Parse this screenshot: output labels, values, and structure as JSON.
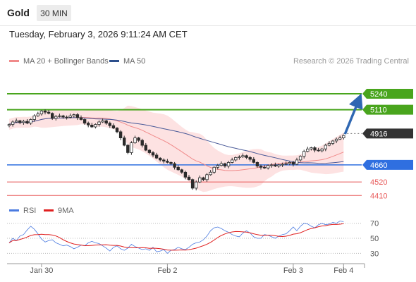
{
  "header": {
    "asset": "Gold",
    "interval": "30 MIN",
    "timestamp": "Tuesday, February 3, 2026 9:11:24 AM CET"
  },
  "legend": [
    {
      "label": "MA 20 + Bollinger Bands",
      "color": "#f08a8a"
    },
    {
      "label": "MA 50",
      "color": "#2c4f8c"
    }
  ],
  "credit": "Research © 2026 Trading Central",
  "colors": {
    "up_candle": "#ffffff",
    "down_candle": "#2b2b2b",
    "bollinger_fill": "#fde2e2",
    "ma20": "#f08a8a",
    "ma50": "#4a5a98",
    "resistance": "#49a51d",
    "support": "#2f6fe0",
    "target": "#e85a5a",
    "arrow": "#2f67b2",
    "rsi": "#4a7ae0",
    "rsi_ma": "#e01f1f"
  },
  "chart_data": [
    {
      "type": "candlestick",
      "title": "Gold",
      "interval": "30 MIN",
      "ylim": [
        4360,
        5430
      ],
      "x_labels": [
        {
          "label": "Jan 30",
          "index": 9
        },
        {
          "label": "Feb 2",
          "index": 44
        },
        {
          "label": "Feb 3",
          "index": 79
        },
        {
          "label": "Feb 4",
          "index": 93
        }
      ],
      "closes": [
        4990,
        5010,
        5020,
        5005,
        5015,
        5000,
        5030,
        5060,
        5075,
        5100,
        5090,
        5080,
        5040,
        5055,
        5060,
        5050,
        5048,
        5060,
        5070,
        5045,
        5030,
        5000,
        4985,
        4970,
        4990,
        5010,
        5020,
        5000,
        4980,
        4960,
        4930,
        4880,
        4820,
        4760,
        4840,
        4880,
        4860,
        4820,
        4780,
        4760,
        4740,
        4715,
        4700,
        4690,
        4680,
        4670,
        4640,
        4620,
        4600,
        4560,
        4540,
        4470,
        4520,
        4555,
        4540,
        4580,
        4600,
        4640,
        4655,
        4670,
        4650,
        4680,
        4700,
        4720,
        4725,
        4735,
        4720,
        4705,
        4680,
        4650,
        4640,
        4635,
        4655,
        4660,
        4650,
        4660,
        4665,
        4670,
        4680,
        4665,
        4700,
        4730,
        4770,
        4790,
        4800,
        4780,
        4775,
        4790,
        4820,
        4835,
        4855,
        4870,
        4880,
        4900
      ],
      "series": [
        {
          "name": "MA 20"
        },
        {
          "name": "MA 50"
        }
      ],
      "levels": [
        {
          "value": 5240,
          "kind": "resistance"
        },
        {
          "value": 5110,
          "kind": "resistance"
        },
        {
          "value": 4916,
          "kind": "last"
        },
        {
          "value": 4660,
          "kind": "support"
        },
        {
          "value": 4520,
          "kind": "target"
        },
        {
          "value": 4410,
          "kind": "target"
        }
      ],
      "projection_to": 5240
    },
    {
      "type": "line",
      "title": "RSI",
      "ylim": [
        20,
        80
      ],
      "y_ticks": [
        70,
        50,
        30
      ],
      "series": [
        {
          "name": "RSI",
          "values": [
            44,
            50,
            47,
            53,
            55,
            61,
            66,
            62,
            56,
            49,
            45,
            47,
            48,
            44,
            42,
            40,
            41,
            39,
            36,
            38,
            41,
            40,
            44,
            46,
            44,
            43,
            40,
            37,
            33,
            38,
            40,
            36,
            34,
            37,
            42,
            39,
            37,
            35,
            36,
            34,
            38,
            32,
            33,
            35,
            30,
            34,
            35,
            38,
            36,
            35,
            38,
            42,
            44,
            45,
            48,
            53,
            60,
            64,
            65,
            63,
            60,
            58,
            55,
            53,
            52,
            57,
            60,
            57,
            52,
            50,
            50,
            55,
            54,
            52,
            50,
            53,
            55,
            56,
            60,
            65,
            60,
            66,
            70,
            69,
            66,
            64,
            68,
            70,
            68,
            69,
            71,
            70,
            73,
            72
          ]
        },
        {
          "name": "9MA"
        }
      ]
    }
  ]
}
